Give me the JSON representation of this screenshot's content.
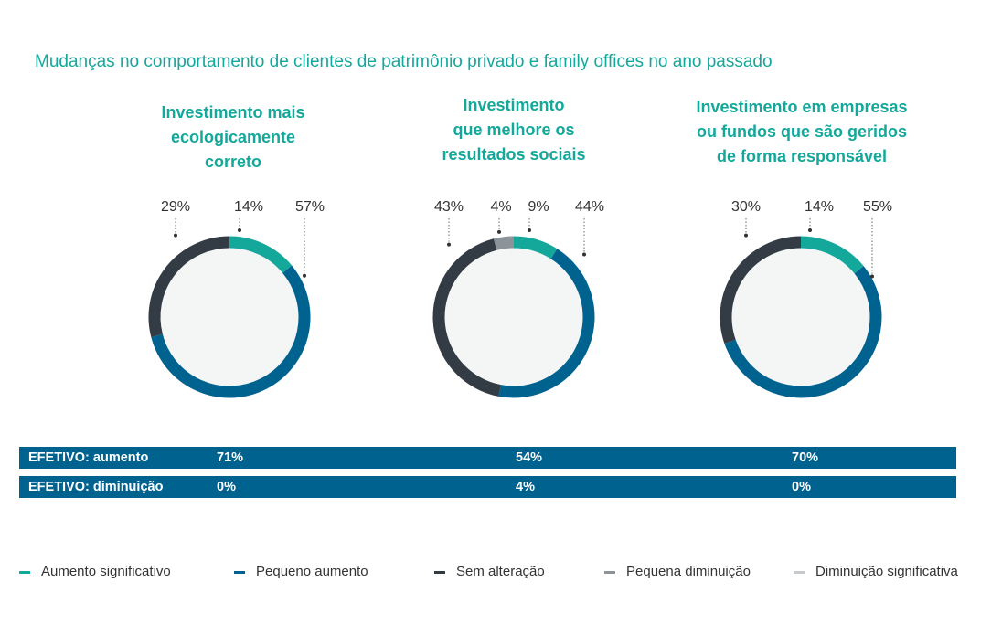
{
  "title": "Mudanças no comportamento de clientes de patrimônio privado e family offices no ano passado",
  "colors": {
    "aumento_significativo": "#14a89b",
    "pequeno_aumento": "#00628f",
    "sem_alteracao": "#333c45",
    "pequena_diminuicao": "#8c9399",
    "diminuicao_significativa": "#c8cbcd",
    "donut_fill": "#f4f5f5",
    "bar": "#00628f"
  },
  "chart_data": [
    {
      "type": "pie",
      "title_lines": [
        "Investimento mais",
        "ecologicamente",
        "correto"
      ],
      "categories": [
        "Aumento significativo",
        "Pequeno aumento",
        "Sem alteração",
        "Pequena diminuição",
        "Diminuição significativa"
      ],
      "values": [
        14,
        57,
        29,
        0,
        0
      ],
      "labels": [
        "14%",
        "57%",
        "29%"
      ]
    },
    {
      "type": "pie",
      "title_lines": [
        "Investimento",
        "que melhore os",
        "resultados sociais"
      ],
      "categories": [
        "Aumento significativo",
        "Pequeno aumento",
        "Sem alteração",
        "Pequena diminuição",
        "Diminuição significativa"
      ],
      "values": [
        9,
        44,
        43,
        4,
        0
      ],
      "labels": [
        "9%",
        "44%",
        "43%",
        "4%"
      ]
    },
    {
      "type": "pie",
      "title_lines": [
        "Investimento em empresas",
        "ou fundos que são geridos",
        "de forma responsável"
      ],
      "categories": [
        "Aumento significativo",
        "Pequeno aumento",
        "Sem alteração",
        "Pequena diminuição",
        "Diminuição significativa"
      ],
      "values": [
        14,
        55,
        30,
        0,
        0
      ],
      "labels": [
        "14%",
        "55%",
        "30%"
      ]
    }
  ],
  "summary": {
    "rows": [
      {
        "label": "EFETIVO: aumento",
        "values": [
          "71%",
          "54%",
          "70%"
        ]
      },
      {
        "label": "EFETIVO: diminuição",
        "values": [
          "0%",
          "4%",
          "0%"
        ]
      }
    ]
  },
  "legend": [
    {
      "label": "Aumento significativo",
      "color": "#14a89b"
    },
    {
      "label": "Pequeno aumento",
      "color": "#00628f"
    },
    {
      "label": "Sem alteração",
      "color": "#333c45"
    },
    {
      "label": "Pequena diminuição",
      "color": "#8c9399"
    },
    {
      "label": "Diminuição significativa",
      "color": "#c8cbcd"
    }
  ]
}
